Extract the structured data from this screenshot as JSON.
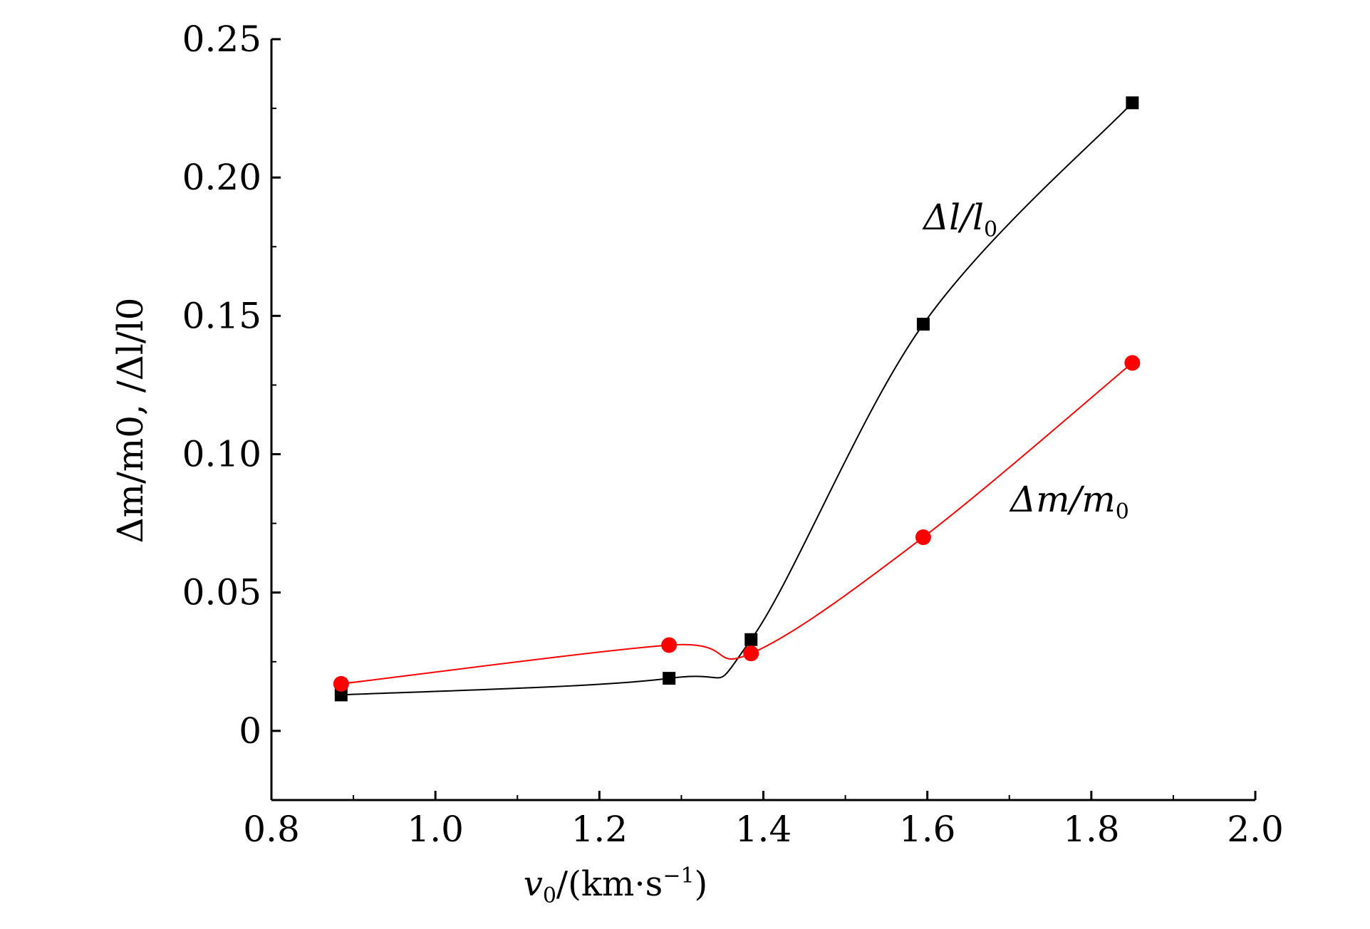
{
  "chart_data": {
    "type": "line",
    "title": "",
    "xlabel": {
      "var": "v",
      "sub": "0",
      "unit_prefix": "/(km·s",
      "unit_exp": "−1",
      "unit_suffix": ")"
    },
    "ylabel": "Δm/m0, /Δl/l0",
    "xlim": [
      0.8,
      2.0
    ],
    "ylim": [
      -0.025,
      0.25
    ],
    "x_ticks": [
      "0.8",
      "1.0",
      "1.2",
      "1.4",
      "1.6",
      "1.8",
      "2.0"
    ],
    "y_ticks": [
      "0",
      "0.05",
      "0.10",
      "0.15",
      "0.20",
      "0.25"
    ],
    "grid": false,
    "series": [
      {
        "name": "Δl/l0",
        "marker": "square",
        "color": "#000000",
        "x": [
          0.885,
          1.285,
          1.385,
          1.595,
          1.85
        ],
        "y": [
          0.013,
          0.019,
          0.033,
          0.147,
          0.227
        ],
        "label": {
          "main": "Δl/l",
          "sub": "0"
        }
      },
      {
        "name": "Δm/m0",
        "marker": "circle",
        "color": "#ff0000",
        "x": [
          0.885,
          1.285,
          1.385,
          1.595,
          1.85
        ],
        "y": [
          0.017,
          0.031,
          0.028,
          0.07,
          0.133
        ],
        "label": {
          "main": "Δm/m",
          "sub": "0"
        }
      }
    ]
  }
}
